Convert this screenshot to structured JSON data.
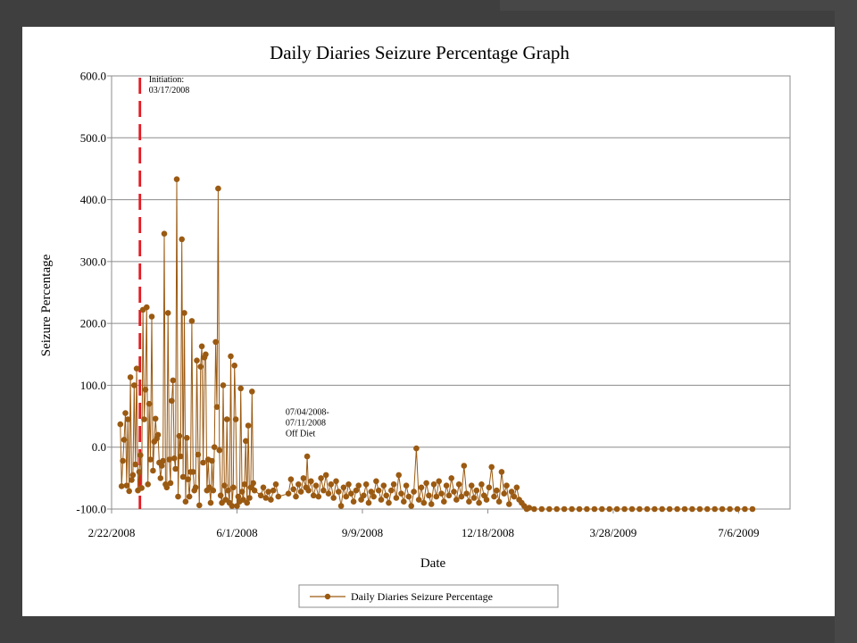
{
  "chart_data": {
    "type": "line",
    "title": "Daily Diaries Seizure Percentage Graph",
    "xlabel": "Date",
    "ylabel": "Seizure Percentage",
    "ylim": [
      -100,
      600
    ],
    "yticks": [
      "600.0",
      "500.0",
      "400.0",
      "300.0",
      "200.0",
      "100.0",
      "0.0",
      "-100.0"
    ],
    "xlim": [
      "2008-02-22",
      "2009-08-16"
    ],
    "xticks": [
      {
        "date": "2008-02-22",
        "label": "2/22/2008"
      },
      {
        "date": "2008-06-01",
        "label": "6/1/2008"
      },
      {
        "date": "2008-09-09",
        "label": "9/9/2008"
      },
      {
        "date": "2008-12-18",
        "label": "12/18/2008"
      },
      {
        "date": "2009-03-28",
        "label": "3/28/2009"
      },
      {
        "date": "2009-07-06",
        "label": "7/6/2009"
      }
    ],
    "grid": true,
    "legend_position": "bottom",
    "series_color": "#9b5a12",
    "marker_line_color": "#e31b23",
    "series": [
      {
        "name": "Daily Diaries Seizure Percentage",
        "points": [
          [
            "2008-02-29",
            37
          ],
          [
            "2008-03-01",
            -63
          ],
          [
            "2008-03-02",
            -22
          ],
          [
            "2008-03-03",
            12
          ],
          [
            "2008-03-04",
            55
          ],
          [
            "2008-03-05",
            -62
          ],
          [
            "2008-03-06",
            45
          ],
          [
            "2008-03-07",
            -71
          ],
          [
            "2008-03-08",
            113
          ],
          [
            "2008-03-09",
            -53
          ],
          [
            "2008-03-10",
            -45
          ],
          [
            "2008-03-11",
            100
          ],
          [
            "2008-03-12",
            -28
          ],
          [
            "2008-03-13",
            127
          ],
          [
            "2008-03-14",
            -70
          ],
          [
            "2008-03-15",
            -40
          ],
          [
            "2008-03-16",
            -13
          ],
          [
            "2008-03-17",
            -66
          ],
          [
            "2008-03-18",
            222
          ],
          [
            "2008-03-19",
            45
          ],
          [
            "2008-03-20",
            93
          ],
          [
            "2008-03-21",
            226
          ],
          [
            "2008-03-22",
            -60
          ],
          [
            "2008-03-23",
            70
          ],
          [
            "2008-03-24",
            -20
          ],
          [
            "2008-03-25",
            211
          ],
          [
            "2008-03-26",
            -38
          ],
          [
            "2008-03-27",
            9
          ],
          [
            "2008-03-28",
            46
          ],
          [
            "2008-03-29",
            14
          ],
          [
            "2008-03-30",
            20
          ],
          [
            "2008-03-31",
            -25
          ],
          [
            "2008-04-01",
            -50
          ],
          [
            "2008-04-02",
            -30
          ],
          [
            "2008-04-03",
            -22
          ],
          [
            "2008-04-04",
            345
          ],
          [
            "2008-04-05",
            -60
          ],
          [
            "2008-04-06",
            -65
          ],
          [
            "2008-04-07",
            217
          ],
          [
            "2008-04-08",
            -20
          ],
          [
            "2008-04-09",
            -58
          ],
          [
            "2008-04-10",
            75
          ],
          [
            "2008-04-11",
            108
          ],
          [
            "2008-04-12",
            -18
          ],
          [
            "2008-04-13",
            -35
          ],
          [
            "2008-04-14",
            433
          ],
          [
            "2008-04-15",
            -80
          ],
          [
            "2008-04-16",
            18
          ],
          [
            "2008-04-17",
            -15
          ],
          [
            "2008-04-18",
            336
          ],
          [
            "2008-04-19",
            -48
          ],
          [
            "2008-04-20",
            217
          ],
          [
            "2008-04-21",
            -88
          ],
          [
            "2008-04-22",
            15
          ],
          [
            "2008-04-23",
            -52
          ],
          [
            "2008-04-24",
            -80
          ],
          [
            "2008-04-25",
            -40
          ],
          [
            "2008-04-26",
            204
          ],
          [
            "2008-04-27",
            -40
          ],
          [
            "2008-04-28",
            -70
          ],
          [
            "2008-04-29",
            -65
          ],
          [
            "2008-04-30",
            140
          ],
          [
            "2008-05-01",
            -12
          ],
          [
            "2008-05-02",
            -94
          ],
          [
            "2008-05-03",
            130
          ],
          [
            "2008-05-04",
            163
          ],
          [
            "2008-05-05",
            -25
          ],
          [
            "2008-05-06",
            145
          ],
          [
            "2008-05-07",
            150
          ],
          [
            "2008-05-08",
            -70
          ],
          [
            "2008-05-09",
            -20
          ],
          [
            "2008-05-10",
            -65
          ],
          [
            "2008-05-11",
            -90
          ],
          [
            "2008-05-12",
            -22
          ],
          [
            "2008-05-13",
            -70
          ],
          [
            "2008-05-14",
            0
          ],
          [
            "2008-05-15",
            170
          ],
          [
            "2008-05-16",
            65
          ],
          [
            "2008-05-17",
            418
          ],
          [
            "2008-05-18",
            -5
          ],
          [
            "2008-05-19",
            -78
          ],
          [
            "2008-05-20",
            -90
          ],
          [
            "2008-05-21",
            100
          ],
          [
            "2008-05-22",
            -62
          ],
          [
            "2008-05-23",
            -85
          ],
          [
            "2008-05-24",
            45
          ],
          [
            "2008-05-25",
            -70
          ],
          [
            "2008-05-26",
            -90
          ],
          [
            "2008-05-27",
            147
          ],
          [
            "2008-05-28",
            -95
          ],
          [
            "2008-05-29",
            -65
          ],
          [
            "2008-05-30",
            132
          ],
          [
            "2008-05-31",
            45
          ],
          [
            "2008-06-01",
            -95
          ],
          [
            "2008-06-02",
            -80
          ],
          [
            "2008-06-03",
            -88
          ],
          [
            "2008-06-04",
            95
          ],
          [
            "2008-06-05",
            -72
          ],
          [
            "2008-06-06",
            -85
          ],
          [
            "2008-06-07",
            -60
          ],
          [
            "2008-06-08",
            10
          ],
          [
            "2008-06-09",
            -90
          ],
          [
            "2008-06-10",
            35
          ],
          [
            "2008-06-11",
            -82
          ],
          [
            "2008-06-12",
            -65
          ],
          [
            "2008-06-13",
            90
          ],
          [
            "2008-06-14",
            -58
          ],
          [
            "2008-06-15",
            -70
          ],
          [
            "2008-06-20",
            -78
          ],
          [
            "2008-06-22",
            -65
          ],
          [
            "2008-06-24",
            -82
          ],
          [
            "2008-06-26",
            -72
          ],
          [
            "2008-06-28",
            -85
          ],
          [
            "2008-06-30",
            -70
          ],
          [
            "2008-07-02",
            -60
          ],
          [
            "2008-07-04",
            -80
          ],
          [
            "2008-07-12",
            -75
          ],
          [
            "2008-07-14",
            -52
          ],
          [
            "2008-07-16",
            -68
          ],
          [
            "2008-07-18",
            -80
          ],
          [
            "2008-07-20",
            -60
          ],
          [
            "2008-07-22",
            -72
          ],
          [
            "2008-07-24",
            -50
          ],
          [
            "2008-07-26",
            -65
          ],
          [
            "2008-07-27",
            -15
          ],
          [
            "2008-07-28",
            -70
          ],
          [
            "2008-07-30",
            -55
          ],
          [
            "2008-08-01",
            -78
          ],
          [
            "2008-08-03",
            -62
          ],
          [
            "2008-08-05",
            -80
          ],
          [
            "2008-08-07",
            -50
          ],
          [
            "2008-08-09",
            -70
          ],
          [
            "2008-08-11",
            -45
          ],
          [
            "2008-08-13",
            -75
          ],
          [
            "2008-08-15",
            -60
          ],
          [
            "2008-08-17",
            -82
          ],
          [
            "2008-08-19",
            -55
          ],
          [
            "2008-08-21",
            -72
          ],
          [
            "2008-08-23",
            -95
          ],
          [
            "2008-08-25",
            -65
          ],
          [
            "2008-08-27",
            -80
          ],
          [
            "2008-08-29",
            -60
          ],
          [
            "2008-08-31",
            -75
          ],
          [
            "2008-09-02",
            -88
          ],
          [
            "2008-09-04",
            -70
          ],
          [
            "2008-09-06",
            -62
          ],
          [
            "2008-09-08",
            -85
          ],
          [
            "2008-09-10",
            -78
          ],
          [
            "2008-09-12",
            -60
          ],
          [
            "2008-09-14",
            -90
          ],
          [
            "2008-09-16",
            -72
          ],
          [
            "2008-09-18",
            -80
          ],
          [
            "2008-09-20",
            -55
          ],
          [
            "2008-09-22",
            -70
          ],
          [
            "2008-09-24",
            -85
          ],
          [
            "2008-09-26",
            -62
          ],
          [
            "2008-09-28",
            -78
          ],
          [
            "2008-09-30",
            -90
          ],
          [
            "2008-10-02",
            -70
          ],
          [
            "2008-10-04",
            -60
          ],
          [
            "2008-10-06",
            -82
          ],
          [
            "2008-10-08",
            -45
          ],
          [
            "2008-10-10",
            -75
          ],
          [
            "2008-10-12",
            -88
          ],
          [
            "2008-10-14",
            -62
          ],
          [
            "2008-10-16",
            -80
          ],
          [
            "2008-10-18",
            -95
          ],
          [
            "2008-10-20",
            -72
          ],
          [
            "2008-10-22",
            -2
          ],
          [
            "2008-10-24",
            -85
          ],
          [
            "2008-10-26",
            -65
          ],
          [
            "2008-10-28",
            -90
          ],
          [
            "2008-10-30",
            -58
          ],
          [
            "2008-11-01",
            -78
          ],
          [
            "2008-11-03",
            -92
          ],
          [
            "2008-11-05",
            -60
          ],
          [
            "2008-11-07",
            -80
          ],
          [
            "2008-11-09",
            -55
          ],
          [
            "2008-11-11",
            -75
          ],
          [
            "2008-11-13",
            -88
          ],
          [
            "2008-11-15",
            -62
          ],
          [
            "2008-11-17",
            -78
          ],
          [
            "2008-11-19",
            -50
          ],
          [
            "2008-11-21",
            -72
          ],
          [
            "2008-11-23",
            -85
          ],
          [
            "2008-11-25",
            -60
          ],
          [
            "2008-11-27",
            -80
          ],
          [
            "2008-11-29",
            -30
          ],
          [
            "2008-12-01",
            -75
          ],
          [
            "2008-12-03",
            -88
          ],
          [
            "2008-12-05",
            -62
          ],
          [
            "2008-12-07",
            -82
          ],
          [
            "2008-12-09",
            -70
          ],
          [
            "2008-12-11",
            -90
          ],
          [
            "2008-12-13",
            -60
          ],
          [
            "2008-12-15",
            -78
          ],
          [
            "2008-12-17",
            -85
          ],
          [
            "2008-12-19",
            -65
          ],
          [
            "2008-12-21",
            -32
          ],
          [
            "2008-12-23",
            -80
          ],
          [
            "2008-12-25",
            -70
          ],
          [
            "2008-12-27",
            -88
          ],
          [
            "2008-12-29",
            -40
          ],
          [
            "2008-12-31",
            -75
          ],
          [
            "2009-01-02",
            -62
          ],
          [
            "2009-01-04",
            -92
          ],
          [
            "2009-01-06",
            -72
          ],
          [
            "2009-01-08",
            -80
          ],
          [
            "2009-01-10",
            -65
          ],
          [
            "2009-01-12",
            -85
          ],
          [
            "2009-01-14",
            -90
          ],
          [
            "2009-01-16",
            -95
          ],
          [
            "2009-01-18",
            -100
          ],
          [
            "2009-01-20",
            -98
          ],
          [
            "2009-01-24",
            -100
          ],
          [
            "2009-01-30",
            -100
          ],
          [
            "2009-02-05",
            -100
          ],
          [
            "2009-02-11",
            -100
          ],
          [
            "2009-02-17",
            -100
          ],
          [
            "2009-02-23",
            -100
          ],
          [
            "2009-03-01",
            -100
          ],
          [
            "2009-03-07",
            -100
          ],
          [
            "2009-03-13",
            -100
          ],
          [
            "2009-03-19",
            -100
          ],
          [
            "2009-03-25",
            -100
          ],
          [
            "2009-03-31",
            -100
          ],
          [
            "2009-04-06",
            -100
          ],
          [
            "2009-04-12",
            -100
          ],
          [
            "2009-04-18",
            -100
          ],
          [
            "2009-04-24",
            -100
          ],
          [
            "2009-04-30",
            -100
          ],
          [
            "2009-05-06",
            -100
          ],
          [
            "2009-05-12",
            -100
          ],
          [
            "2009-05-18",
            -100
          ],
          [
            "2009-05-24",
            -100
          ],
          [
            "2009-05-30",
            -100
          ],
          [
            "2009-06-05",
            -100
          ],
          [
            "2009-06-11",
            -100
          ],
          [
            "2009-06-17",
            -100
          ],
          [
            "2009-06-23",
            -100
          ],
          [
            "2009-06-29",
            -100
          ],
          [
            "2009-07-05",
            -100
          ],
          [
            "2009-07-11",
            -100
          ],
          [
            "2009-07-17",
            -100
          ]
        ]
      }
    ],
    "annotations": [
      {
        "date": "2008-03-17",
        "lines": [
          "Initiation:",
          "03/17/2008"
        ],
        "anchor_y": 590
      },
      {
        "date": "2008-07-04",
        "lines": [
          "07/04/2008-",
          "07/11/2008",
          "Off Diet"
        ],
        "anchor_y": 52
      }
    ],
    "vline_date": "2008-03-17"
  }
}
